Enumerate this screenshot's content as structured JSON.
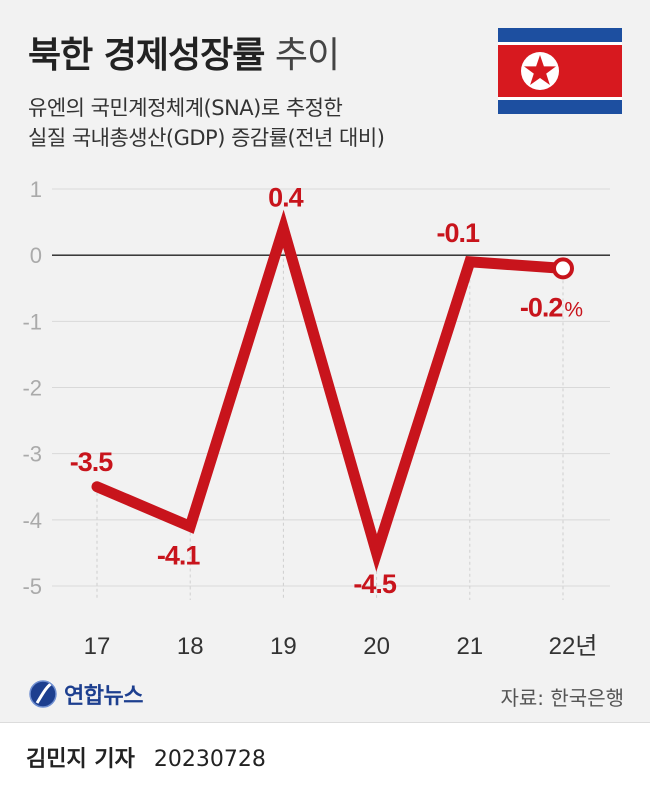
{
  "header": {
    "title_bold": "북한 경제성장률",
    "title_light": "추이",
    "subtitle_line1": "유엔의 국민계정체계(SNA)로 추정한",
    "subtitle_line2": "실질 국내총생산(GDP) 증감률(전년 대비)"
  },
  "flag": {
    "icon": "north-korea-flag-icon",
    "colors": {
      "blue": "#1d4fa0",
      "red": "#d7191f",
      "white": "#ffffff"
    }
  },
  "chart_data": {
    "type": "line",
    "categories": [
      "17",
      "18",
      "19",
      "20",
      "21",
      "22년"
    ],
    "values": [
      -3.5,
      -4.1,
      0.4,
      -4.5,
      -0.1,
      -0.2
    ],
    "data_labels": [
      "-3.5",
      "-4.1",
      "0.4",
      "-4.5",
      "-0.1",
      "-0.2"
    ],
    "last_label_unit": "%",
    "y_ticks": [
      "1",
      "0",
      "-1",
      "-2",
      "-3",
      "-4",
      "-5"
    ],
    "ylim": [
      -5,
      1
    ],
    "line_color": "#c8141c",
    "grid": true,
    "legend": "none"
  },
  "source": "자료: 한국은행",
  "logo": {
    "icon": "yonhap-logo-icon",
    "text": "연합뉴스",
    "color": "#1d3f8f"
  },
  "footer": {
    "reporter": "김민지 기자",
    "date": "20230728"
  }
}
